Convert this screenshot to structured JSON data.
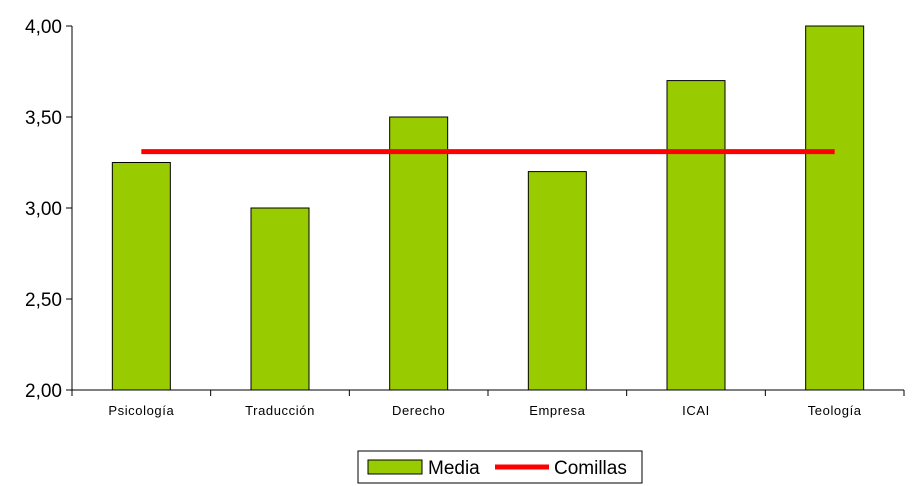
{
  "chart_data": {
    "type": "bar",
    "title": "",
    "xlabel": "",
    "ylabel": "",
    "categories": [
      "Psicología",
      "Traducción",
      "Derecho",
      "Empresa",
      "ICAI",
      "Teología"
    ],
    "ylim": [
      2.0,
      4.0
    ],
    "yticks": [
      "2,00",
      "2,50",
      "3,00",
      "3,50",
      "4,00"
    ],
    "ytick_values": [
      2.0,
      2.5,
      3.0,
      3.5,
      4.0
    ],
    "grid": false,
    "legend_position": "bottom-center",
    "series": [
      {
        "name": "Media",
        "type": "bar",
        "color": "#99cc00",
        "values": [
          3.25,
          3.0,
          3.5,
          3.2,
          3.7,
          4.0
        ]
      },
      {
        "name": "Comillas",
        "type": "line",
        "color": "#ff0000",
        "values": [
          3.31,
          3.31,
          3.31,
          3.31,
          3.31,
          3.31
        ]
      }
    ]
  }
}
